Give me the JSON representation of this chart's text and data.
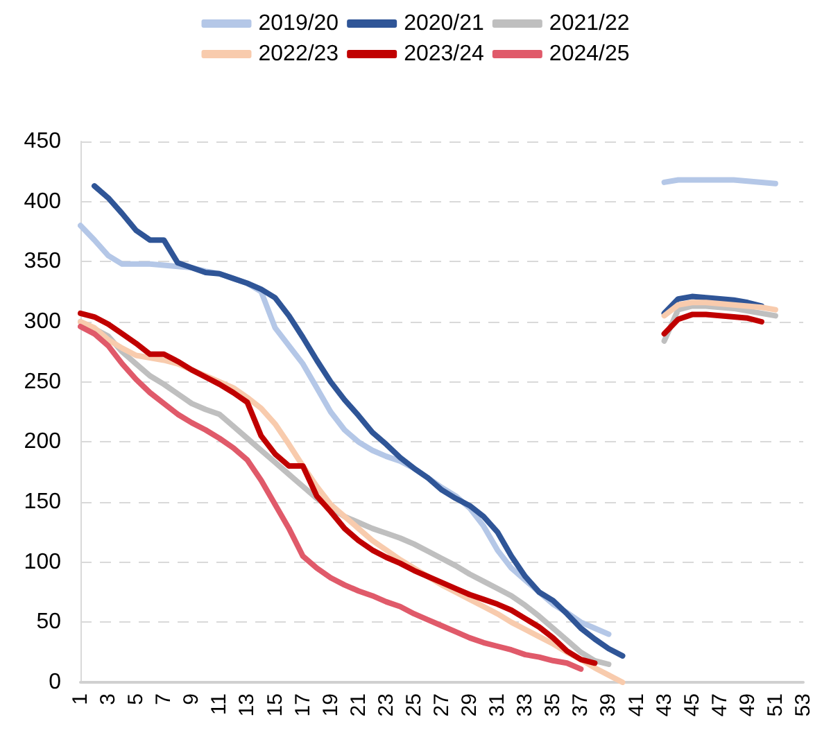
{
  "chart_data": {
    "type": "line",
    "categories": [
      "1",
      null,
      "3",
      null,
      "5",
      null,
      "7",
      null,
      "9",
      null,
      "11",
      null,
      "13",
      null,
      "15",
      null,
      "17",
      null,
      "19",
      null,
      "21",
      null,
      "23",
      null,
      "25",
      null,
      "27",
      null,
      "29",
      null,
      "31",
      null,
      "33",
      null,
      "35",
      null,
      "37",
      null,
      "39",
      null,
      "41",
      null,
      "43",
      null,
      "45",
      null,
      "47",
      null,
      "49",
      null,
      "51",
      null,
      "53"
    ],
    "series": [
      {
        "name": "2019/20",
        "color": "#b4c7e7",
        "values": [
          380,
          368,
          355,
          348,
          348,
          348,
          347,
          346,
          345,
          342,
          340,
          336,
          332,
          325,
          295,
          280,
          265,
          245,
          225,
          210,
          200,
          193,
          188,
          184,
          178,
          170,
          162,
          155,
          145,
          130,
          110,
          95,
          85,
          75,
          65,
          58,
          50,
          45,
          40,
          null,
          null,
          null,
          416,
          418,
          418,
          418,
          418,
          418,
          417,
          416,
          415,
          null,
          null
        ]
      },
      {
        "name": "2020/21",
        "color": "#2f5597",
        "values": [
          null,
          413,
          403,
          390,
          376,
          368,
          368,
          349,
          345,
          341,
          340,
          336,
          332,
          327,
          320,
          305,
          287,
          268,
          250,
          235,
          222,
          208,
          198,
          187,
          178,
          170,
          160,
          153,
          147,
          138,
          125,
          105,
          88,
          75,
          68,
          57,
          45,
          36,
          28,
          22,
          null,
          null,
          307,
          319,
          321,
          320,
          319,
          318,
          316,
          313,
          null,
          null,
          null
        ]
      },
      {
        "name": "2021/22",
        "color": "#bfbfbf",
        "values": [
          300,
          294,
          288,
          275,
          265,
          255,
          248,
          240,
          232,
          227,
          223,
          213,
          203,
          193,
          183,
          173,
          163,
          153,
          145,
          138,
          133,
          128,
          124,
          120,
          115,
          109,
          103,
          97,
          90,
          84,
          78,
          72,
          64,
          55,
          45,
          35,
          25,
          18,
          15,
          null,
          null,
          null,
          284,
          310,
          313,
          313,
          312,
          311,
          309,
          307,
          305,
          null,
          null
        ]
      },
      {
        "name": "2022/23",
        "color": "#f8cbad",
        "values": [
          300,
          295,
          285,
          278,
          272,
          270,
          268,
          265,
          260,
          255,
          250,
          245,
          237,
          228,
          215,
          198,
          180,
          163,
          148,
          138,
          128,
          118,
          110,
          102,
          95,
          88,
          81,
          75,
          69,
          63,
          57,
          50,
          44,
          38,
          32,
          25,
          19,
          12,
          6,
          0,
          null,
          null,
          305,
          314,
          316,
          316,
          315,
          314,
          313,
          312,
          310,
          null,
          null
        ]
      },
      {
        "name": "2023/24",
        "color": "#c00000",
        "values": [
          307,
          304,
          298,
          290,
          282,
          273,
          273,
          267,
          260,
          254,
          248,
          241,
          233,
          205,
          190,
          180,
          180,
          155,
          142,
          128,
          118,
          110,
          104,
          99,
          93,
          88,
          83,
          78,
          73,
          69,
          65,
          60,
          53,
          46,
          37,
          26,
          19,
          16,
          null,
          null,
          null,
          null,
          290,
          302,
          306,
          306,
          305,
          304,
          303,
          300,
          null,
          null,
          null
        ]
      },
      {
        "name": "2024/25",
        "color": "#e05a6a",
        "values": [
          296,
          290,
          280,
          265,
          252,
          241,
          232,
          223,
          216,
          210,
          203,
          195,
          185,
          168,
          148,
          128,
          105,
          95,
          87,
          81,
          76,
          72,
          67,
          63,
          57,
          52,
          47,
          42,
          37,
          33,
          30,
          27,
          23,
          21,
          18,
          16,
          11,
          null,
          null,
          null,
          null,
          null,
          null,
          null,
          null,
          null,
          null,
          null,
          null,
          null,
          null,
          null,
          null
        ]
      }
    ],
    "ylim": [
      0,
      450
    ],
    "yticks": [
      0,
      50,
      100,
      150,
      200,
      250,
      300,
      350,
      400,
      450
    ],
    "grid": "y",
    "legend": "top",
    "marker": "none",
    "line_style": "solid"
  }
}
